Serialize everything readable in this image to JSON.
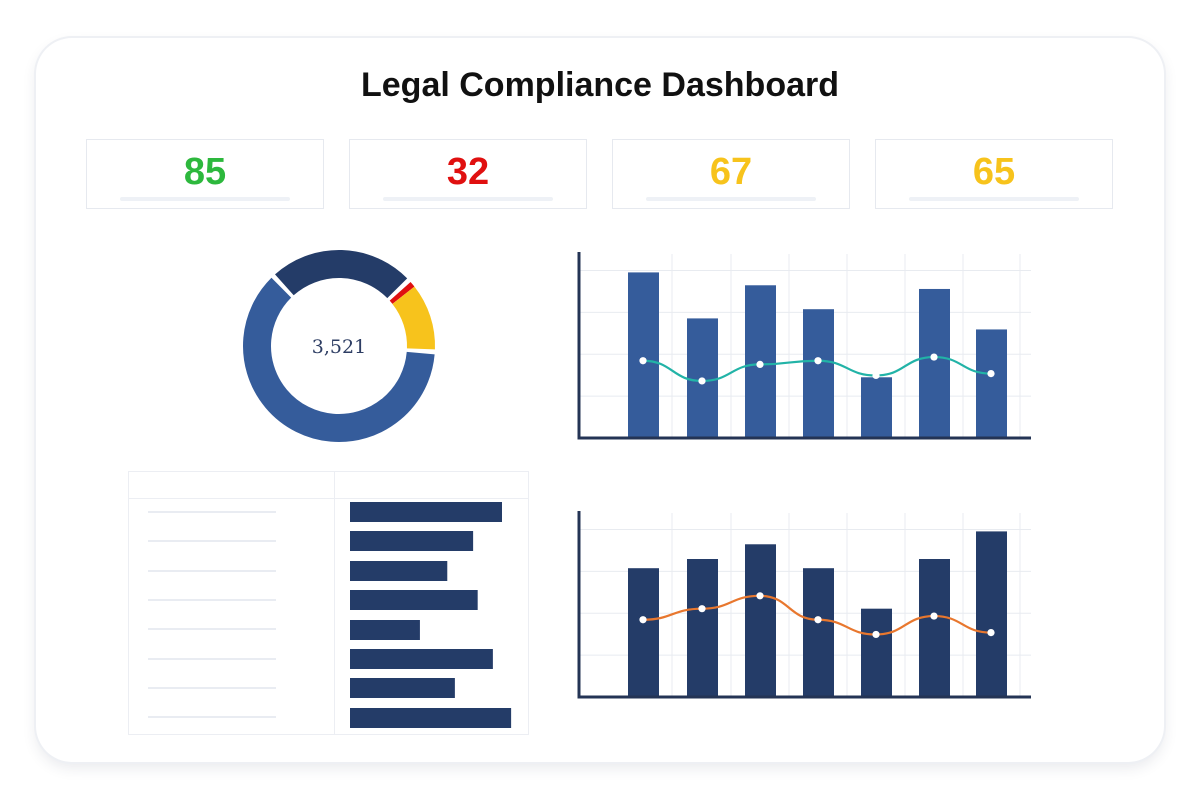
{
  "title": "Legal Compliance Dashboard",
  "colors": {
    "green": "#2db83d",
    "red": "#e01010",
    "yellow": "#f7c31c",
    "blue": "#355c9b",
    "navy": "#243c68",
    "teal": "#22b3a7",
    "orange": "#e8772e"
  },
  "kpis": [
    {
      "value": "85",
      "color": "#2db83d"
    },
    {
      "value": "32",
      "color": "#e01010"
    },
    {
      "value": "67",
      "color": "#f7c31c"
    },
    {
      "value": "65",
      "color": "#f7c31c"
    }
  ],
  "chart_data": [
    {
      "type": "pie",
      "variant": "donut",
      "center_label": "3,521",
      "slices": [
        {
          "value": 62,
          "color": "#355c9b"
        },
        {
          "value": 25,
          "color": "#243c68"
        },
        {
          "value": 1,
          "color": "#e01010"
        },
        {
          "value": 12,
          "color": "#f7c31c"
        }
      ]
    },
    {
      "type": "bar",
      "bar_color": "#355c9b",
      "line_color": "#22b3a7",
      "ylim": [
        0,
        100
      ],
      "grid": true,
      "values": [
        90,
        65,
        83,
        70,
        33,
        81,
        59
      ],
      "line_values": [
        42,
        31,
        40,
        42,
        34,
        44,
        35
      ]
    },
    {
      "type": "bar",
      "bar_color": "#243c68",
      "line_color": "#e8772e",
      "ylim": [
        0,
        100
      ],
      "grid": true,
      "values": [
        70,
        75,
        83,
        70,
        48,
        75,
        90
      ],
      "line_values": [
        42,
        48,
        55,
        42,
        34,
        44,
        35
      ]
    },
    {
      "type": "bar",
      "orientation": "horizontal",
      "bar_color": "#243c68",
      "values": [
        100,
        81,
        64,
        84,
        46,
        94,
        69,
        106
      ]
    }
  ]
}
